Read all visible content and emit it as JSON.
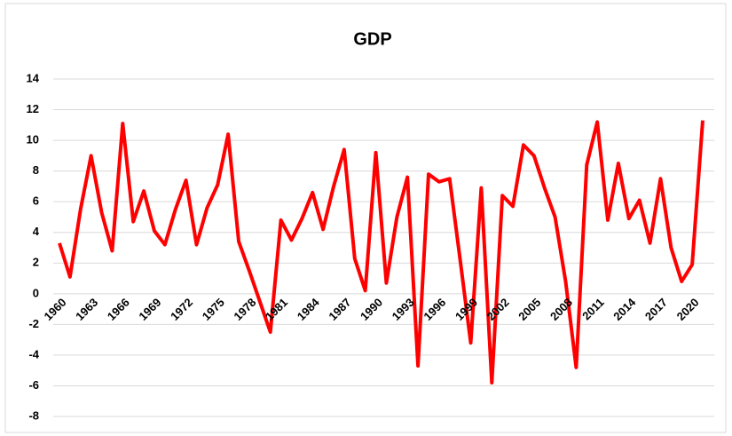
{
  "chart_data": {
    "type": "line",
    "title": "GDP",
    "x": [
      1960,
      1961,
      1962,
      1963,
      1964,
      1965,
      1966,
      1967,
      1968,
      1969,
      1970,
      1971,
      1972,
      1973,
      1974,
      1975,
      1976,
      1977,
      1978,
      1979,
      1980,
      1981,
      1982,
      1983,
      1984,
      1985,
      1986,
      1987,
      1988,
      1989,
      1990,
      1991,
      1992,
      1993,
      1994,
      1995,
      1996,
      1997,
      1998,
      1999,
      2000,
      2001,
      2002,
      2003,
      2004,
      2005,
      2006,
      2007,
      2008,
      2009,
      2010,
      2011,
      2012,
      2013,
      2014,
      2015,
      2016,
      2017,
      2018,
      2019,
      2020,
      2021
    ],
    "series": [
      {
        "name": "GDP",
        "color": "#ff0000",
        "values": [
          3.3,
          1.1,
          5.5,
          9.0,
          5.3,
          2.8,
          11.1,
          4.7,
          6.7,
          4.1,
          3.2,
          5.5,
          7.4,
          3.2,
          5.6,
          7.1,
          10.4,
          3.4,
          1.5,
          -0.5,
          -2.5,
          4.8,
          3.5,
          4.9,
          6.6,
          4.2,
          7.0,
          9.4,
          2.3,
          0.2,
          9.2,
          0.7,
          5.0,
          7.6,
          -4.7,
          7.8,
          7.3,
          7.5,
          2.2,
          -3.2,
          6.9,
          -5.8,
          6.4,
          5.7,
          9.7,
          9.0,
          6.9,
          5.0,
          0.8,
          -4.8,
          8.4,
          11.2,
          4.8,
          8.5,
          4.9,
          6.1,
          3.3,
          7.5,
          3.0,
          0.8,
          1.9,
          11.3
        ]
      }
    ],
    "xlim": [
      1960,
      2021
    ],
    "xticks": [
      1960,
      1963,
      1966,
      1969,
      1972,
      1975,
      1978,
      1981,
      1984,
      1987,
      1990,
      1993,
      1996,
      1999,
      2002,
      2005,
      2008,
      2011,
      2014,
      2017,
      2020
    ],
    "ylim": [
      -8,
      14
    ],
    "yticks": [
      -8,
      -6,
      -4,
      -2,
      0,
      2,
      4,
      6,
      8,
      10,
      12,
      14
    ],
    "grid": true
  }
}
